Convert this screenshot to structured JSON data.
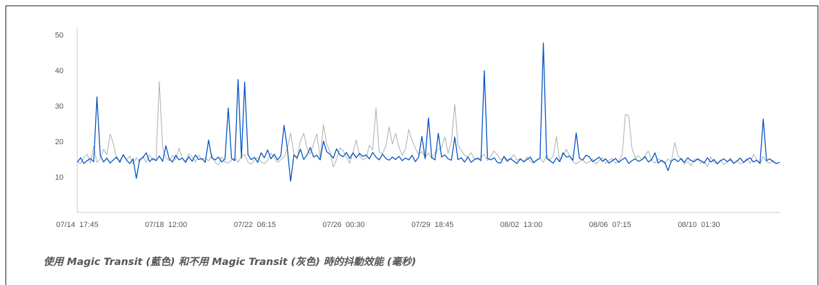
{
  "caption": "使用 Magic Transit (藍色) 和不用 Magic Transit (灰色) 時的抖動效能 (毫秒)",
  "colors": {
    "blue": "#0051c3",
    "gray": "#b3b3b3",
    "axis": "#cccccc",
    "text": "#555555"
  },
  "chart_data": {
    "type": "line",
    "title": "",
    "xlabel": "",
    "ylabel": "",
    "ylim": [
      0,
      52
    ],
    "yticks": [
      10,
      20,
      30,
      40,
      50
    ],
    "xticks": [
      "07/14  17:45",
      "07/18  12:00",
      "07/22  06:15",
      "07/26  00:30",
      "07/29  18:45",
      "08/02  13:00",
      "08/06  07:15",
      "08/10  01:30"
    ],
    "x_index_range": [
      0,
      214
    ],
    "grid": false,
    "legend": "none",
    "series": [
      {
        "color": "#b3b3b3",
        "values": [
          14.2,
          13.8,
          15.5,
          16.4,
          13.9,
          18.6,
          14.1,
          15.2,
          17.8,
          16.3,
          22.1,
          19.4,
          15.1,
          14.6,
          16.2,
          14.8,
          15.9,
          13.7,
          15.4,
          14.3,
          15.8,
          14.1,
          16.2,
          14.7,
          15.1,
          36.8,
          18.2,
          15.4,
          14.6,
          16.1,
          14.9,
          18.1,
          15.2,
          14.4,
          16.5,
          15.7,
          14.2,
          16.1,
          14.8,
          15.3,
          14.5,
          16.2,
          14.1,
          13.4,
          15.6,
          14.2,
          13.9,
          14.7,
          15.4,
          14.1,
          15.8,
          16.3,
          14.2,
          13.6,
          14.9,
          15.5,
          14.2,
          13.8,
          14.6,
          16.7,
          15.4,
          14.1,
          14.8,
          15.6,
          18.1,
          22.4,
          16.3,
          14.9,
          20.2,
          22.3,
          18.1,
          16.4,
          19.4,
          22.1,
          15.3,
          24.7,
          19.3,
          17.1,
          12.8,
          14.9,
          18.2,
          17.4,
          15.6,
          13.9,
          16.8,
          20.4,
          16.1,
          14.8,
          15.3,
          18.9,
          17.6,
          29.3,
          17.1,
          16.5,
          18.7,
          24.1,
          19.3,
          22.3,
          18.4,
          16.1,
          17.9,
          23.4,
          20.2,
          18.1,
          16.3,
          17.2,
          15.4,
          16.8,
          15.2,
          16.9,
          17.7,
          18.4,
          21.3,
          16.6,
          20.1,
          30.5,
          18.9,
          17.4,
          16.1,
          15.6,
          16.8,
          15.1,
          14.9,
          15.7,
          16.3,
          14.6,
          15.9,
          17.3,
          16.2,
          14.8,
          15.4,
          14.2,
          15.1,
          16.3,
          14.7,
          15.2,
          14.1,
          15.6,
          14.4,
          13.8,
          14.9,
          15.3,
          14.1,
          16.2,
          14.7,
          15.9,
          21.3,
          14.2,
          16.1,
          17.8,
          15.9,
          14.3,
          13.7,
          14.4,
          14.8,
          13.9,
          14.2,
          15.1,
          13.6,
          14.6,
          15.4,
          13.8,
          14.7,
          15.2,
          13.9,
          14.4,
          16.2,
          27.6,
          27.2,
          18.1,
          15.4,
          15.9,
          14.8,
          16.1,
          17.3,
          14.6,
          13.9,
          15.2,
          14.4,
          13.7,
          15.1,
          14.2,
          19.7,
          16.1,
          14.8,
          13.6,
          14.3,
          13.2,
          14.9,
          15.1,
          13.8,
          14.4,
          12.9,
          15.6,
          14.1,
          13.7,
          14.8,
          13.5,
          14.2,
          15.3,
          13.9,
          14.6,
          13.7,
          14.1,
          15.2,
          13.8,
          16.4,
          14.9,
          13.6,
          15.8,
          14.2,
          13.9,
          14.7,
          13.6
        ]
      },
      {
        "color": "#0051c3",
        "values": [
          14.1,
          15.4,
          13.8,
          14.6,
          15.2,
          14.3,
          32.5,
          16.1,
          14.2,
          15.3,
          13.9,
          14.8,
          15.6,
          14.1,
          16.3,
          14.7,
          13.8,
          15.1,
          9.6,
          14.9,
          15.4,
          16.8,
          14.3,
          15.2,
          14.6,
          15.9,
          14.4,
          18.8,
          15.1,
          14.2,
          16.1,
          14.8,
          15.3,
          14.1,
          15.7,
          14.4,
          16.2,
          14.9,
          15.2,
          14.1,
          20.4,
          15.3,
          14.8,
          15.6,
          14.2,
          15.1,
          29.4,
          15.2,
          14.6,
          37.4,
          15.3,
          36.7,
          16.2,
          14.9,
          15.5,
          14.1,
          16.8,
          15.4,
          17.6,
          15.1,
          16.4,
          14.8,
          15.9,
          24.5,
          18.1,
          8.8,
          16.2,
          15.4,
          17.8,
          14.9,
          16.2,
          18.3,
          15.6,
          16.1,
          14.8,
          20.1,
          17.1,
          16.4,
          15.3,
          17.9,
          16.2,
          15.7,
          16.9,
          15.2,
          16.8,
          15.4,
          16.6,
          15.8,
          16.2,
          15.1,
          16.9,
          15.6,
          14.8,
          16.4,
          15.2,
          14.7,
          15.6,
          14.9,
          15.8,
          14.6,
          15.3,
          14.8,
          16.1,
          14.3,
          15.6,
          21.4,
          15.1,
          26.6,
          15.4,
          14.8,
          22.3,
          15.6,
          16.2,
          15.1,
          14.7,
          21.2,
          14.9,
          15.4,
          14.2,
          15.6,
          14.1,
          14.9,
          15.3,
          14.6,
          39.9,
          15.2,
          14.8,
          15.4,
          14.1,
          13.9,
          15.8,
          14.6,
          15.2,
          14.4,
          13.8,
          15.1,
          14.3,
          14.9,
          15.6,
          14.1,
          14.7,
          15.3,
          47.7,
          15.2,
          14.6,
          13.9,
          15.4,
          14.3,
          16.8,
          15.6,
          15.9,
          14.7,
          22.4,
          15.2,
          14.8,
          16.1,
          15.7,
          14.3,
          14.9,
          15.6,
          14.4,
          15.1,
          13.9,
          14.6,
          15.2,
          14.1,
          14.9,
          15.4,
          13.8,
          14.6,
          15.1,
          14.4,
          14.8,
          15.7,
          14.2,
          14.9,
          16.8,
          13.9,
          14.7,
          14.1,
          11.8,
          14.5,
          15.1,
          14.3,
          15.2,
          14.1,
          15.4,
          14.6,
          14.3,
          15.1,
          14.6,
          13.9,
          15.4,
          14.2,
          14.9,
          13.7,
          14.6,
          15.1,
          14.3,
          14.9,
          13.8,
          14.5,
          15.3,
          14.1,
          14.8,
          15.4,
          14.2,
          14.7,
          13.9,
          26.3,
          14.6,
          15.1,
          14.3,
          13.8,
          14.1
        ]
      }
    ]
  }
}
